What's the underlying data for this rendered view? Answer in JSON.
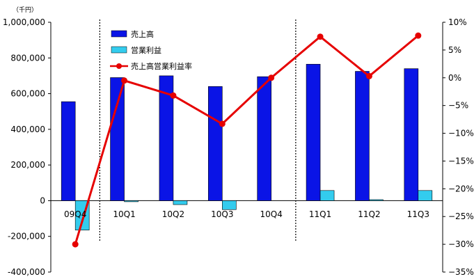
{
  "chart_data": {
    "type": "bar",
    "unit_label": "（千円）",
    "categories": [
      "09Q4",
      "10Q1",
      "10Q2",
      "10Q3",
      "10Q4",
      "11Q1",
      "11Q2",
      "11Q3"
    ],
    "series": [
      {
        "name": "売上高",
        "kind": "bar",
        "axis": "left",
        "color": "#0a14e6",
        "values": [
          555000,
          690000,
          700000,
          640000,
          695000,
          765000,
          725000,
          740000
        ]
      },
      {
        "name": "営業利益",
        "kind": "bar",
        "axis": "left",
        "color": "#33ccee",
        "values": [
          -165000,
          -3000,
          -22000,
          -50000,
          0,
          57000,
          3000,
          57000
        ]
      },
      {
        "name": "売上高営業利益率",
        "kind": "line",
        "axis": "right",
        "color": "#e60000",
        "values": [
          -30,
          -0.5,
          -3.2,
          -8.3,
          0,
          7.4,
          0.3,
          7.6
        ]
      }
    ],
    "y_left": {
      "range": [
        -400000,
        1000000
      ],
      "ticks": [
        1000000,
        800000,
        600000,
        400000,
        200000,
        0,
        -200000,
        -400000
      ],
      "tick_labels": [
        "1,000,000",
        "800,000",
        "600,000",
        "400,000",
        "200,000",
        "0",
        "-200,000",
        "-400,000"
      ]
    },
    "y_right": {
      "range": [
        -35,
        10
      ],
      "ticks": [
        10,
        5,
        0,
        -5,
        -10,
        -15,
        -20,
        -25,
        -30,
        -35
      ],
      "tick_labels": [
        "10%",
        "5%",
        "0%",
        "−5%",
        "−10%",
        "−15%",
        "−20%",
        "−25%",
        "−30%",
        "−35%"
      ]
    },
    "dividers_after_category": [
      0,
      4
    ],
    "legend_position": "top-left",
    "grid": false
  }
}
